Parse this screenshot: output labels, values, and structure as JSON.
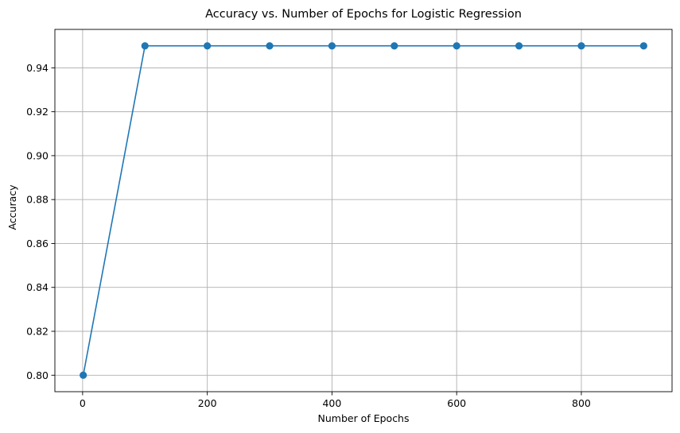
{
  "chart_data": {
    "type": "line",
    "title": "Accuracy vs. Number of Epochs for Logistic Regression",
    "xlabel": "Number of Epochs",
    "ylabel": "Accuracy",
    "x": [
      1,
      100,
      200,
      300,
      400,
      500,
      600,
      700,
      800,
      900
    ],
    "series": [
      {
        "values": [
          0.8,
          0.95,
          0.95,
          0.95,
          0.95,
          0.95,
          0.95,
          0.95,
          0.95,
          0.95
        ],
        "color": "#1f77b4",
        "marker": "circle"
      }
    ],
    "xlim": [
      -44.5,
      945.5
    ],
    "ylim": [
      0.7925,
      0.9575
    ],
    "xticks": [
      0,
      200,
      400,
      600,
      800
    ],
    "xtick_labels": [
      "0",
      "200",
      "400",
      "600",
      "800"
    ],
    "yticks": [
      0.8,
      0.82,
      0.84,
      0.86,
      0.88,
      0.9,
      0.92,
      0.94
    ],
    "ytick_labels": [
      "0.80",
      "0.82",
      "0.84",
      "0.86",
      "0.88",
      "0.90",
      "0.92",
      "0.94"
    ],
    "grid": true,
    "grid_color": "#b0b0b0",
    "legend": false
  }
}
